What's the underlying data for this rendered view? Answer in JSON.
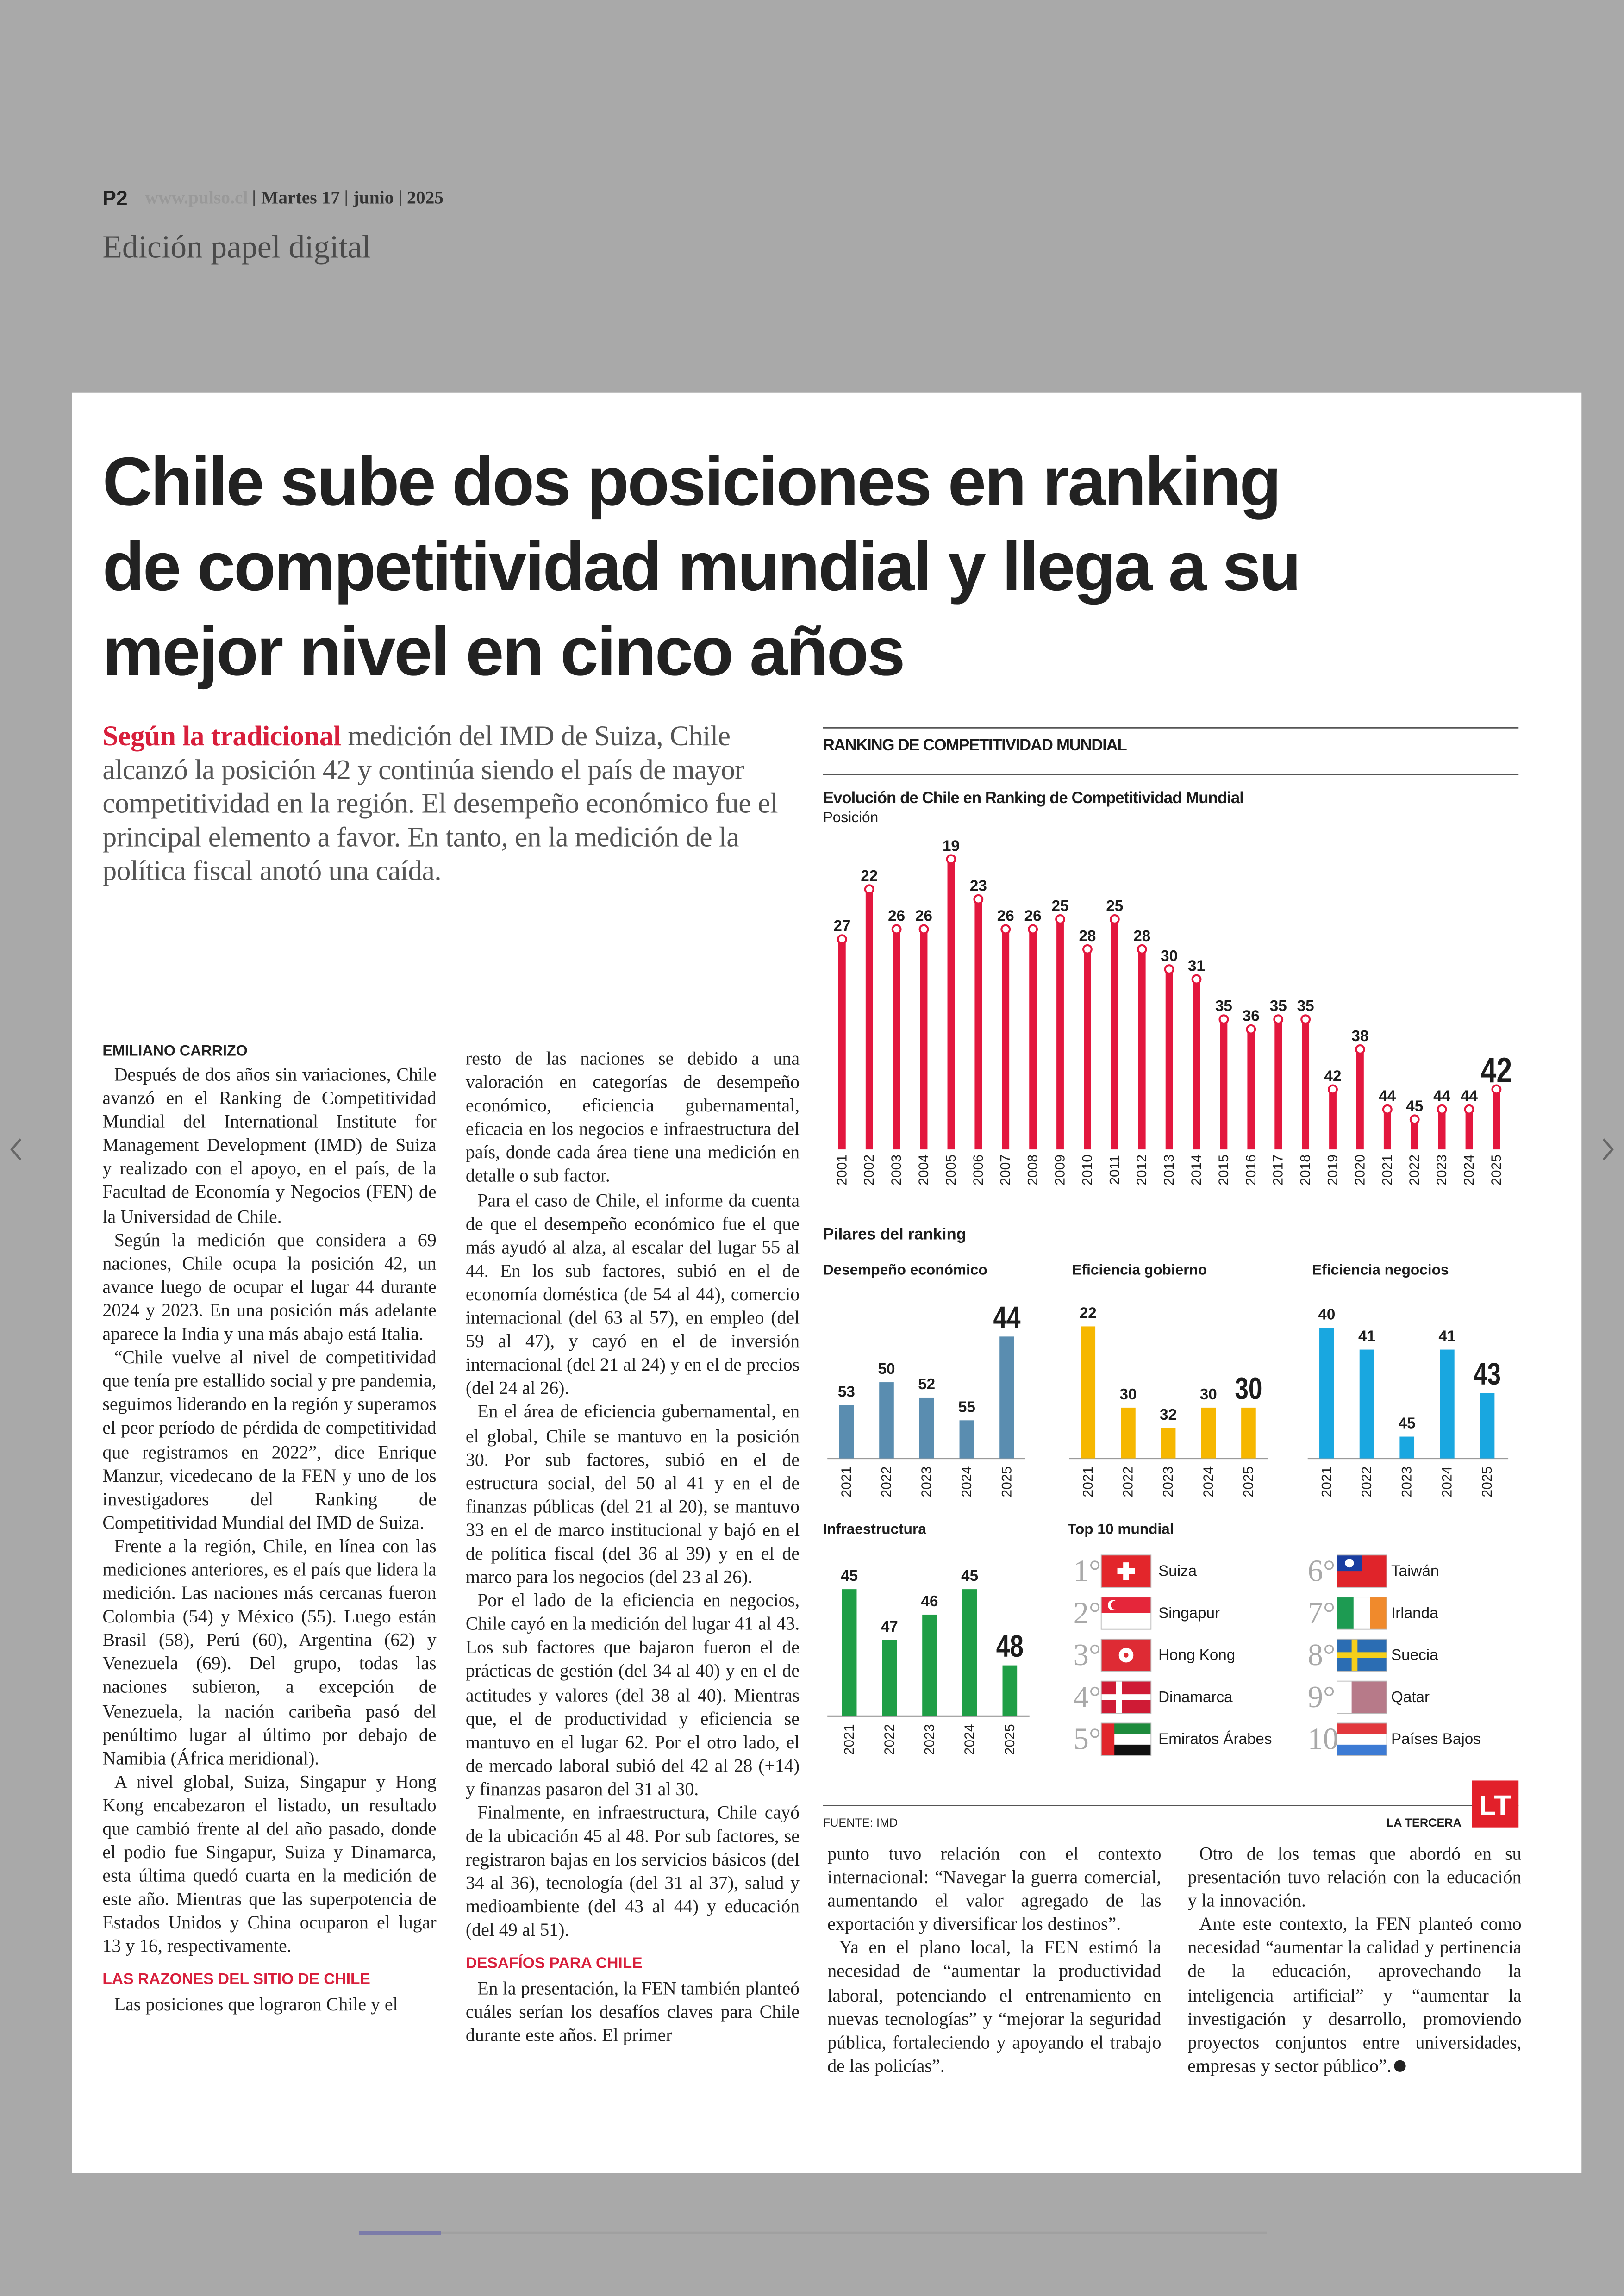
{
  "header": {
    "page": "P2",
    "site": "www.pulso.cl",
    "day": "Martes 17",
    "month": "junio",
    "year": "2025",
    "edition": "Edición papel digital"
  },
  "article": {
    "title_lines": [
      "Chile sube dos posiciones en ranking",
      "de competitividad mundial y llega a su",
      "mejor nivel en cinco años"
    ],
    "lead": {
      "highlight": "Según la tradicional",
      "text": " medición del IMD de Suiza, Chile alcanzó la posición 42 y continúa siendo el país de mayor competitividad en la región. El desempeño económico fue el principal elemento a favor. En tanto, en la medición de la política fiscal anotó una caída."
    },
    "author": "EMILIANO CARRIZO",
    "columns": [
      [
        "Después de dos años sin variaciones, Chile avanzó en el Ranking de Competitividad Mundial del International Institute for Management Development (IMD) de Suiza y realizado con el apoyo, en el país, de la Facultad de Economía y Negocios (FEN) de la Universidad de Chile.",
        "Según la medición que considera a 69 naciones, Chile ocupa la posición 42, un avance luego de ocupar el lugar 44 durante 2024 y 2023. En una posición más adelante aparece la India y una más abajo está Italia.",
        "“Chile vuelve al nivel de competitividad que tenía pre estallido social y pre pandemia, seguimos liderando en la región y superamos el peor período de pérdida de competitividad que registramos en 2022”, dice Enrique Manzur, vicedecano de la FEN y uno de los investigadores del Ranking de Competitividad Mundial del IMD de Suiza.",
        "Frente a la región, Chile, en línea con las mediciones anteriores, es el país que lidera la medición. Las naciones más cercanas fueron Colombia (54) y México (55). Luego están Brasil (58), Perú (60), Argentina (62) y Venezuela (69). Del grupo, todas las naciones subieron, a excepción de Venezuela, la nación caribeña pasó del penúltimo lugar al último por debajo de Namibia (África meridional).",
        "A nivel global, Suiza, Singapur y Hong Kong encabezaron el listado, un resultado que cambió frente al del año pasado, donde el podio fue Singapur, Suiza y Dinamarca, esta última quedó cuarta en la medición de este año. Mientras que las superpotencia de Estados Unidos y China ocuparon el lugar 13 y 16, respectivamente.",
        {
          "subhead": "LAS RAZONES DEL SITIO DE CHILE"
        },
        "Las posiciones que lograron Chile y el"
      ],
      [
        "resto de las naciones se debido a una valoración en categorías de desempeño económico, eficiencia gubernamental, eficacia en los negocios e infraestructura del país, donde cada área tiene una medición en detalle o sub factor.",
        "Para el caso de Chile, el informe da cuenta de que el desempeño económico fue el que más ayudó al alza, al escalar del lugar 55 al 44. En los sub factores, subió en el de economía doméstica (de 54 al 44), comercio internacional (del 63 al 57), en empleo (del 59 al 47), y cayó en el de inversión internacional (del 21 al 24) y en el de precios (del 24 al 26).",
        "En el área de eficiencia gubernamental, en el global, Chile se mantuvo en la posición 30. Por sub factores, subió en el de estructura social, del 50 al 41 y en el de finanzas públicas (del 21 al 20), se mantuvo 33 en el de marco institucional y bajó en el de política fiscal (del 36 al 39) y en el de marco para los negocios (del 23 al 26).",
        "Por el lado de la eficiencia en negocios, Chile cayó en la medición del lugar 41 al 43. Los sub factores que bajaron fueron el de prácticas de gestión (del 34 al 40) y en el de actitudes y valores (del 38 al 40). Mientras que, el de productividad y eficiencia se mantuvo en el lugar 62. Por el otro lado, el de mercado laboral subió del 42 al 28 (+14) y finanzas pasaron del 31 al 30.",
        "Finalmente, en infraestructura, Chile cayó de la ubicación 45 al 48. Por sub factores, se registraron bajas en los servicios básicos (del 34 al 36), tecnología (del 31 al 37), salud y medioambiente (del 43 al 44) y educación (del 49 al 51).",
        {
          "subhead": "DESAFÍOS PARA CHILE"
        },
        "En la presentación, la FEN también planteó cuáles serían los desafíos claves para Chile durante este años. El primer"
      ],
      [
        "punto tuvo relación con el contexto internacional: “Navegar la guerra comercial, aumentando el valor agregado de las exportación y diversificar los destinos”.",
        "Ya en el plano local, la FEN estimó la necesidad de “aumentar la productividad laboral, potenciando el entrenamiento en nuevas tecnologías” y “mejorar la seguridad pública, fortaleciendo y apoyando el trabajo de las policías”."
      ],
      [
        "Otro de los temas que abordó en su presentación tuvo relación con la educación y la innovación.",
        "Ante este contexto, la FEN planteó como necesidad “aumentar la calidad y pertinencia de la educación, aprovechando la inteligencia artificial” y “aumentar la investigación y desarrollo, promoviendo proyectos conjuntos entre universidades, empresas y sector público”."
      ]
    ]
  },
  "infographic": {
    "heading": "RANKING DE COMPETITIVIDAD MUNDIAL",
    "pillars_title": "Pilares del ranking",
    "top10": {
      "title": "Top 10 mundial",
      "items": [
        {
          "rank": "1°",
          "country": "Suiza"
        },
        {
          "rank": "2°",
          "country": "Singapur"
        },
        {
          "rank": "3°",
          "country": "Hong Kong"
        },
        {
          "rank": "4°",
          "country": "Dinamarca"
        },
        {
          "rank": "5°",
          "country": "Emiratos Árabes"
        },
        {
          "rank": "6°",
          "country": "Taiwán"
        },
        {
          "rank": "7°",
          "country": "Irlanda"
        },
        {
          "rank": "8°",
          "country": "Suecia"
        },
        {
          "rank": "9°",
          "country": "Qatar"
        },
        {
          "rank": "10°",
          "country": "Países Bajos"
        }
      ]
    },
    "source": "FUENTE: IMD",
    "brand": "LA TERCERA",
    "logo": "LT"
  },
  "chart_data": [
    {
      "type": "bar",
      "title": "Evolución de Chile en Ranking de Competitividad Mundial",
      "y_label": "Posición",
      "categories": [
        "2001",
        "2002",
        "2003",
        "2004",
        "2005",
        "2006",
        "2007",
        "2008",
        "2009",
        "2010",
        "2011",
        "2012",
        "2013",
        "2014",
        "2015",
        "2016",
        "2017",
        "2018",
        "2019",
        "2020",
        "2021",
        "2022",
        "2023",
        "2024",
        "2025"
      ],
      "values": [
        27,
        22,
        26,
        26,
        19,
        23,
        26,
        26,
        25,
        28,
        25,
        28,
        30,
        31,
        35,
        36,
        35,
        35,
        42,
        38,
        44,
        45,
        44,
        44,
        42
      ],
      "color": "#e3173e",
      "ylim": [
        48,
        0
      ]
    },
    {
      "type": "bar",
      "title": "Desempeño económico",
      "categories": [
        "2021",
        "2022",
        "2023",
        "2024",
        "2025"
      ],
      "values": [
        53,
        50,
        52,
        55,
        44
      ],
      "color": "#5a8db0",
      "ylim": [
        60,
        40
      ]
    },
    {
      "type": "bar",
      "title": "Eficiencia gobierno",
      "categories": [
        "2021",
        "2022",
        "2023",
        "2024",
        "2025"
      ],
      "values": [
        22,
        30,
        32,
        30,
        30
      ],
      "color": "#f6b700",
      "ylim": [
        35,
        20
      ]
    },
    {
      "type": "bar",
      "title": "Eficiencia negocios",
      "categories": [
        "2021",
        "2022",
        "2023",
        "2024",
        "2025"
      ],
      "values": [
        40,
        41,
        45,
        41,
        43
      ],
      "color": "#19a7e0",
      "ylim": [
        46,
        39
      ]
    },
    {
      "type": "bar",
      "title": "Infraestructura",
      "categories": [
        "2021",
        "2022",
        "2023",
        "2024",
        "2025"
      ],
      "values": [
        45,
        47,
        46,
        45,
        48
      ],
      "color": "#1f9e46",
      "ylim": [
        50,
        44
      ]
    }
  ]
}
